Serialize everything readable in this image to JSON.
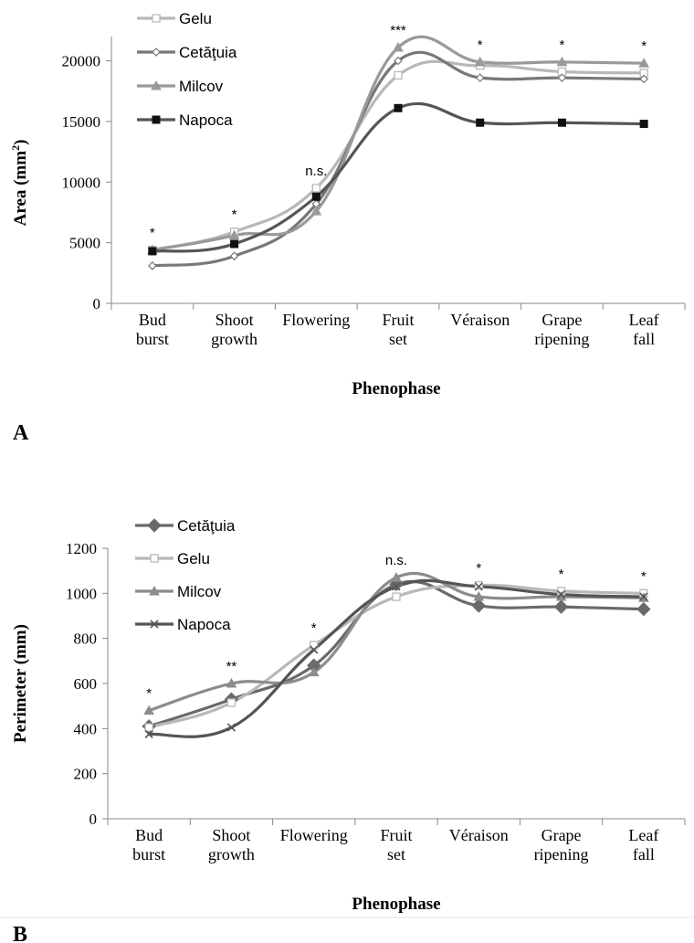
{
  "panels": [
    {
      "label": "A"
    },
    {
      "label": "B"
    }
  ],
  "chart_data": [
    {
      "type": "line",
      "panel": "A",
      "xlabel": "Phenophase",
      "ylabel": "Area (mm²)",
      "ylim": [
        0,
        22000
      ],
      "yticks": [
        0,
        5000,
        10000,
        15000,
        20000
      ],
      "categories": [
        [
          "Bud",
          "burst"
        ],
        [
          "Shoot",
          "growth"
        ],
        [
          "Flowering"
        ],
        [
          "Fruit",
          "set"
        ],
        [
          "Véraison"
        ],
        [
          "Grape",
          "ripening"
        ],
        [
          "Leaf",
          "fall"
        ]
      ],
      "annotations": [
        "*",
        "*",
        "n.s.",
        "***",
        "*",
        "*",
        "*"
      ],
      "legend": "top-left",
      "series": [
        {
          "name": "Gelu",
          "color": "#b8b8b8",
          "marker": "open-square",
          "values": [
            4400,
            5900,
            9500,
            18800,
            19600,
            19100,
            19000
          ]
        },
        {
          "name": "Cetăţuia",
          "color": "#787878",
          "marker": "open-diamond",
          "values": [
            3100,
            3900,
            8200,
            20000,
            18600,
            18600,
            18500
          ]
        },
        {
          "name": "Milcov",
          "color": "#999999",
          "marker": "triangle",
          "values": [
            4400,
            5600,
            7600,
            21100,
            19900,
            19900,
            19800
          ]
        },
        {
          "name": "Napoca",
          "color": "#555555",
          "marker": "filled-square",
          "values": [
            4300,
            4900,
            8800,
            16100,
            14900,
            14900,
            14800
          ]
        }
      ]
    },
    {
      "type": "line",
      "panel": "B",
      "xlabel": "Phenophase",
      "ylabel": "Perimeter (mm)",
      "ylim": [
        0,
        1200
      ],
      "yticks": [
        0,
        200,
        400,
        600,
        800,
        1000,
        1200
      ],
      "categories": [
        [
          "Bud",
          "burst"
        ],
        [
          "Shoot",
          "growth"
        ],
        [
          "Flowering"
        ],
        [
          "Fruit",
          "set"
        ],
        [
          "Véraison"
        ],
        [
          "Grape",
          "ripening"
        ],
        [
          "Leaf",
          "fall"
        ]
      ],
      "annotations": [
        "*",
        "**",
        "*",
        "n.s.",
        "*",
        "*",
        "*"
      ],
      "legend": "top-left",
      "series": [
        {
          "name": "Cetăţuia",
          "color": "#6a6a6a",
          "marker": "filled-diamond",
          "values": [
            410,
            530,
            680,
            1040,
            945,
            940,
            930
          ]
        },
        {
          "name": "Gelu",
          "color": "#b8b8b8",
          "marker": "open-square",
          "values": [
            405,
            515,
            770,
            985,
            1035,
            1010,
            1000
          ]
        },
        {
          "name": "Milcov",
          "color": "#8c8c8c",
          "marker": "triangle",
          "values": [
            480,
            600,
            650,
            1070,
            985,
            985,
            980
          ]
        },
        {
          "name": "Napoca",
          "color": "#555555",
          "marker": "x",
          "values": [
            375,
            405,
            750,
            1030,
            1030,
            995,
            985
          ]
        }
      ]
    }
  ]
}
